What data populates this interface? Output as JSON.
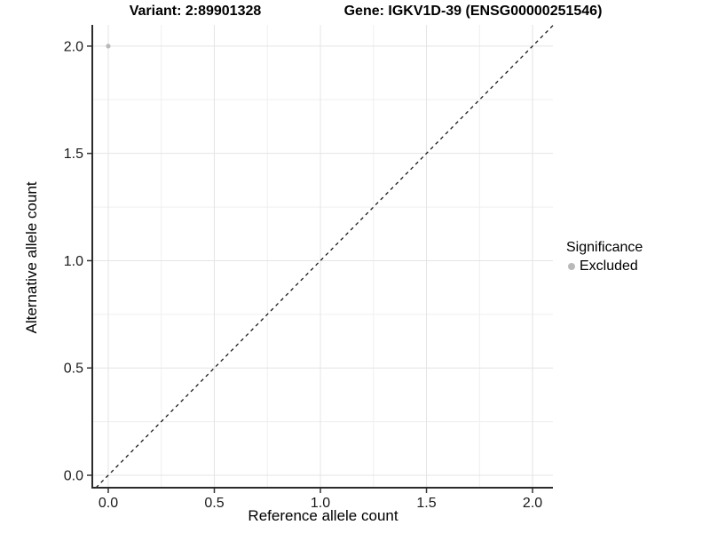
{
  "titles": {
    "left": "Variant: 2:89901328",
    "right": "Gene: IGKV1D-39 (ENSG00000251546)"
  },
  "legend": {
    "title": "Significance",
    "position": "right",
    "items": [
      {
        "label": "Excluded",
        "color": "#b9b9b9"
      }
    ]
  },
  "chart_data": {
    "type": "scatter",
    "title": "Variant: 2:89901328  /  Gene: IGKV1D-39 (ENSG00000251546)",
    "xlabel": "Reference allele count",
    "ylabel": "Alternative allele count",
    "xlim": [
      -0.071,
      2.096
    ],
    "ylim": [
      -0.058,
      2.099
    ],
    "x_major_ticks": [
      0,
      0.5,
      1,
      1.5,
      2
    ],
    "x_tick_labels": [
      "0.0",
      "0.5",
      "1.0",
      "1.5",
      "2.0"
    ],
    "y_major_ticks": [
      0,
      0.5,
      1,
      1.5,
      2
    ],
    "y_tick_labels": [
      "0.0",
      "0.5",
      "1.0",
      "1.5",
      "2.0"
    ],
    "x_minor_ticks": [
      0.25,
      0.75,
      1.25,
      1.75
    ],
    "y_minor_ticks": [
      0.25,
      0.75,
      1.25,
      1.75
    ],
    "grid": true,
    "legend_position": "right",
    "reference_line": {
      "type": "identity y=x",
      "style": "dashed"
    },
    "series": [
      {
        "name": "Excluded",
        "color": "#b9b9b9",
        "points": [
          {
            "x": 0.0,
            "y": 2.0
          }
        ]
      }
    ]
  },
  "style": {
    "grid_major_color": "#e4e4e4",
    "grid_minor_color": "#efefef",
    "axis_line_color": "#2b2b2b",
    "tick_color": "#333333",
    "dashed_line_color": "#1a1a1a",
    "point_color": "#b9b9b9",
    "background": "#ffffff"
  }
}
